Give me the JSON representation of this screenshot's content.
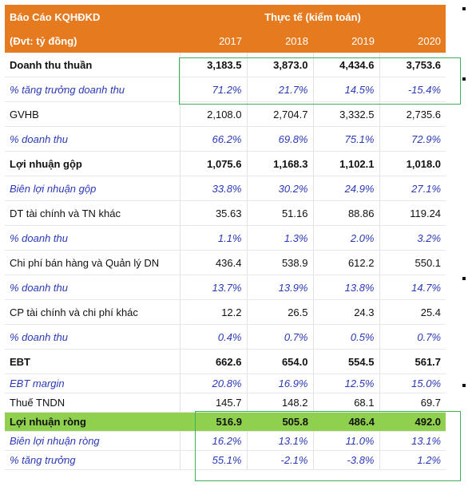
{
  "header": {
    "title": "Báo Cáo KQHĐKD",
    "group_label": "Thực tế (kiểm toán)",
    "unit": "(Đvt: tỷ đồng)",
    "years": [
      "2017",
      "2018",
      "2019",
      "2020"
    ]
  },
  "rows": [
    {
      "label": "Doanh thu thuần",
      "values": [
        "3,183.5",
        "3,873.0",
        "4,434.6",
        "3,753.6"
      ]
    },
    {
      "label": "% tăng trưởng doanh thu",
      "values": [
        "71.2%",
        "21.7%",
        "14.5%",
        "-15.4%"
      ]
    },
    {
      "label": "GVHB",
      "values": [
        "2,108.0",
        "2,704.7",
        "3,332.5",
        "2,735.6"
      ]
    },
    {
      "label": "% doanh thu",
      "values": [
        "66.2%",
        "69.8%",
        "75.1%",
        "72.9%"
      ]
    },
    {
      "label": "Lợi nhuận gộp",
      "values": [
        "1,075.6",
        "1,168.3",
        "1,102.1",
        "1,018.0"
      ]
    },
    {
      "label": "Biên lợi nhuận gộp",
      "values": [
        "33.8%",
        "30.2%",
        "24.9%",
        "27.1%"
      ]
    },
    {
      "label": "DT tài chính và TN khác",
      "values": [
        "35.63",
        "51.16",
        "88.86",
        "119.24"
      ]
    },
    {
      "label": "% doanh thu",
      "values": [
        "1.1%",
        "1.3%",
        "2.0%",
        "3.2%"
      ]
    },
    {
      "label": "Chi phí bán hàng và Quản lý DN",
      "values": [
        "436.4",
        "538.9",
        "612.2",
        "550.1"
      ]
    },
    {
      "label": "% doanh thu",
      "values": [
        "13.7%",
        "13.9%",
        "13.8%",
        "14.7%"
      ]
    },
    {
      "label": "CP tài chính và chi phí khác",
      "values": [
        "12.2",
        "26.5",
        "24.3",
        "25.4"
      ]
    },
    {
      "label": "% doanh thu",
      "values": [
        "0.4%",
        "0.7%",
        "0.5%",
        "0.7%"
      ]
    },
    {
      "label": "EBT",
      "values": [
        "662.6",
        "654.0",
        "554.5",
        "561.7"
      ]
    },
    {
      "label": "EBT margin",
      "values": [
        "20.8%",
        "16.9%",
        "12.5%",
        "15.0%"
      ]
    },
    {
      "label": "Thuế TNDN",
      "values": [
        "145.7",
        "148.2",
        "68.1",
        "69.7"
      ]
    },
    {
      "label": "Lợi nhuận ròng",
      "values": [
        "516.9",
        "505.8",
        "486.4",
        "492.0"
      ]
    },
    {
      "label": "Biên lợi nhuận ròng",
      "values": [
        "16.2%",
        "13.1%",
        "11.0%",
        "13.1%"
      ]
    },
    {
      "label": "% tăng trưởng",
      "values": [
        "55.1%",
        "-2.1%",
        "-3.8%",
        "1.2%"
      ]
    }
  ],
  "colors": {
    "header_bg": "#e67a1f",
    "highlight_row": "#8fd14f",
    "percent_text": "#2a39b8",
    "annotation_box": "#3fb05a"
  }
}
